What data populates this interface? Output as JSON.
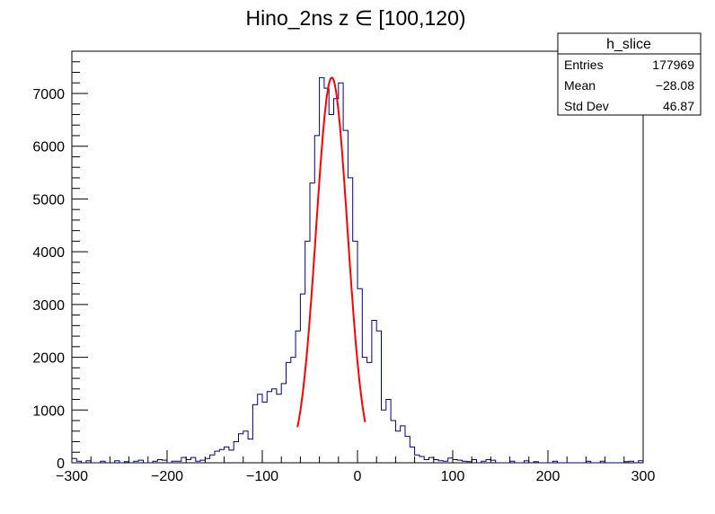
{
  "chart_data": {
    "type": "histogram",
    "title": "Hino_2ns z  ∈ [100,120)",
    "xlabel": "",
    "ylabel": "",
    "xlim": [
      -300,
      300
    ],
    "ylim": [
      0,
      7800
    ],
    "grid": false,
    "x_ticks": [
      -300,
      -200,
      -100,
      0,
      100,
      200,
      300
    ],
    "x_tick_labels": [
      "−300",
      "−200",
      "−100",
      "0",
      "100",
      "200",
      "300"
    ],
    "y_ticks": [
      0,
      1000,
      2000,
      3000,
      4000,
      5000,
      6000,
      7000
    ],
    "y_tick_labels": [
      "0",
      "1000",
      "2000",
      "3000",
      "4000",
      "5000",
      "6000",
      "7000"
    ],
    "histogram": {
      "name": "h_slice",
      "color": "#000080",
      "bin_width": 5,
      "x_start": -300,
      "values": [
        80,
        30,
        0,
        40,
        0,
        0,
        30,
        0,
        0,
        40,
        0,
        20,
        0,
        30,
        50,
        0,
        0,
        30,
        60,
        50,
        0,
        30,
        30,
        100,
        60,
        100,
        30,
        50,
        80,
        150,
        220,
        250,
        300,
        240,
        400,
        550,
        600,
        450,
        1100,
        1300,
        1150,
        1350,
        1400,
        1300,
        1500,
        1900,
        2000,
        2500,
        3200,
        4200,
        5300,
        6200,
        7300,
        7100,
        6600,
        6900,
        7200,
        6300,
        5400,
        4200,
        3300,
        2000,
        1900,
        2700,
        2500,
        1000,
        1200,
        800,
        600,
        700,
        500,
        300,
        150,
        120,
        60,
        100,
        60,
        40,
        30,
        90,
        60,
        50,
        30,
        20,
        60,
        0,
        30,
        60,
        50,
        0,
        0,
        0,
        30,
        0,
        0,
        40,
        0,
        20,
        0,
        0,
        0,
        30,
        0,
        0,
        0,
        0,
        0,
        0,
        30,
        0,
        0,
        30,
        0,
        0,
        0,
        0,
        20,
        30,
        0,
        40
      ]
    },
    "fit": {
      "type": "gaus",
      "color": "#ff0000",
      "constant": 7300,
      "mean": -27,
      "sigma": 16.5,
      "range": [
        -63,
        8
      ]
    },
    "stats_box": {
      "title": "h_slice",
      "rows": [
        {
          "label": "Entries",
          "value": "177969"
        },
        {
          "label": "Mean",
          "value": "−28.08"
        },
        {
          "label": "Std Dev",
          "value": "46.87"
        }
      ]
    }
  }
}
